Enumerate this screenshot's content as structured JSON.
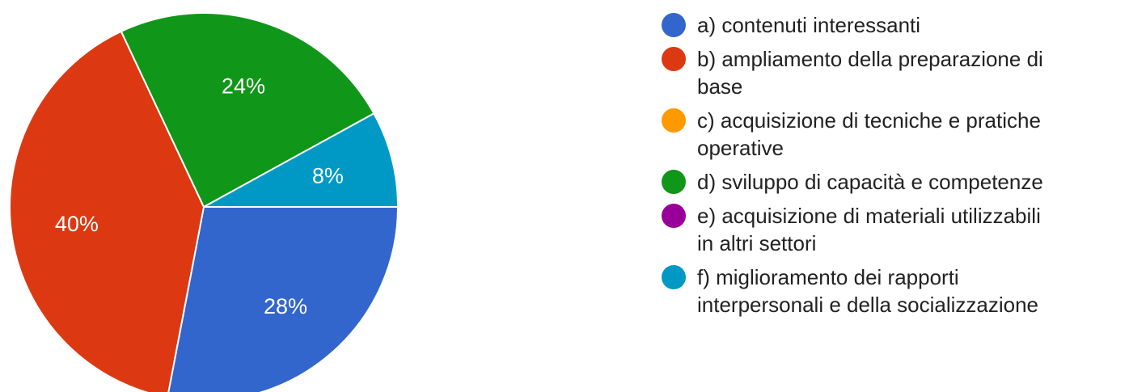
{
  "chart_data": {
    "type": "pie",
    "title": "",
    "categories": [
      "a) contenuti interessanti",
      "b) ampliamento della preparazione di base",
      "c) acquisizione di tecniche e pratiche operative",
      "d) sviluppo di capacità e competenze",
      "e) acquisizione di materiali utilizzabili in altri settori",
      "f) miglioramento dei rapporti interpersonali e della socializzazione"
    ],
    "values": [
      28,
      40,
      0,
      24,
      0,
      8
    ],
    "value_labels": [
      "28%",
      "40%",
      "",
      "24%",
      "",
      "8%"
    ],
    "colors": [
      "#3366CC",
      "#DC3912",
      "#FF9900",
      "#109618",
      "#990099",
      "#0099C6"
    ],
    "legend_position": "right",
    "start_angle_deg": 90,
    "direction": "clockwise"
  },
  "legend": {
    "items": [
      {
        "line1": "a) contenuti interessanti",
        "line2": ""
      },
      {
        "line1": "b) ampliamento della preparazione di",
        "line2": "base"
      },
      {
        "line1": "c) acquisizione di tecniche e pratiche",
        "line2": "operative"
      },
      {
        "line1": "d) sviluppo di capacità e competenze",
        "line2": ""
      },
      {
        "line1": "e) acquisizione di materiali utilizzabili",
        "line2": "in altri settori"
      },
      {
        "line1": "f) miglioramento dei rapporti",
        "line2": "interpersonali e della socializzazione"
      }
    ]
  }
}
